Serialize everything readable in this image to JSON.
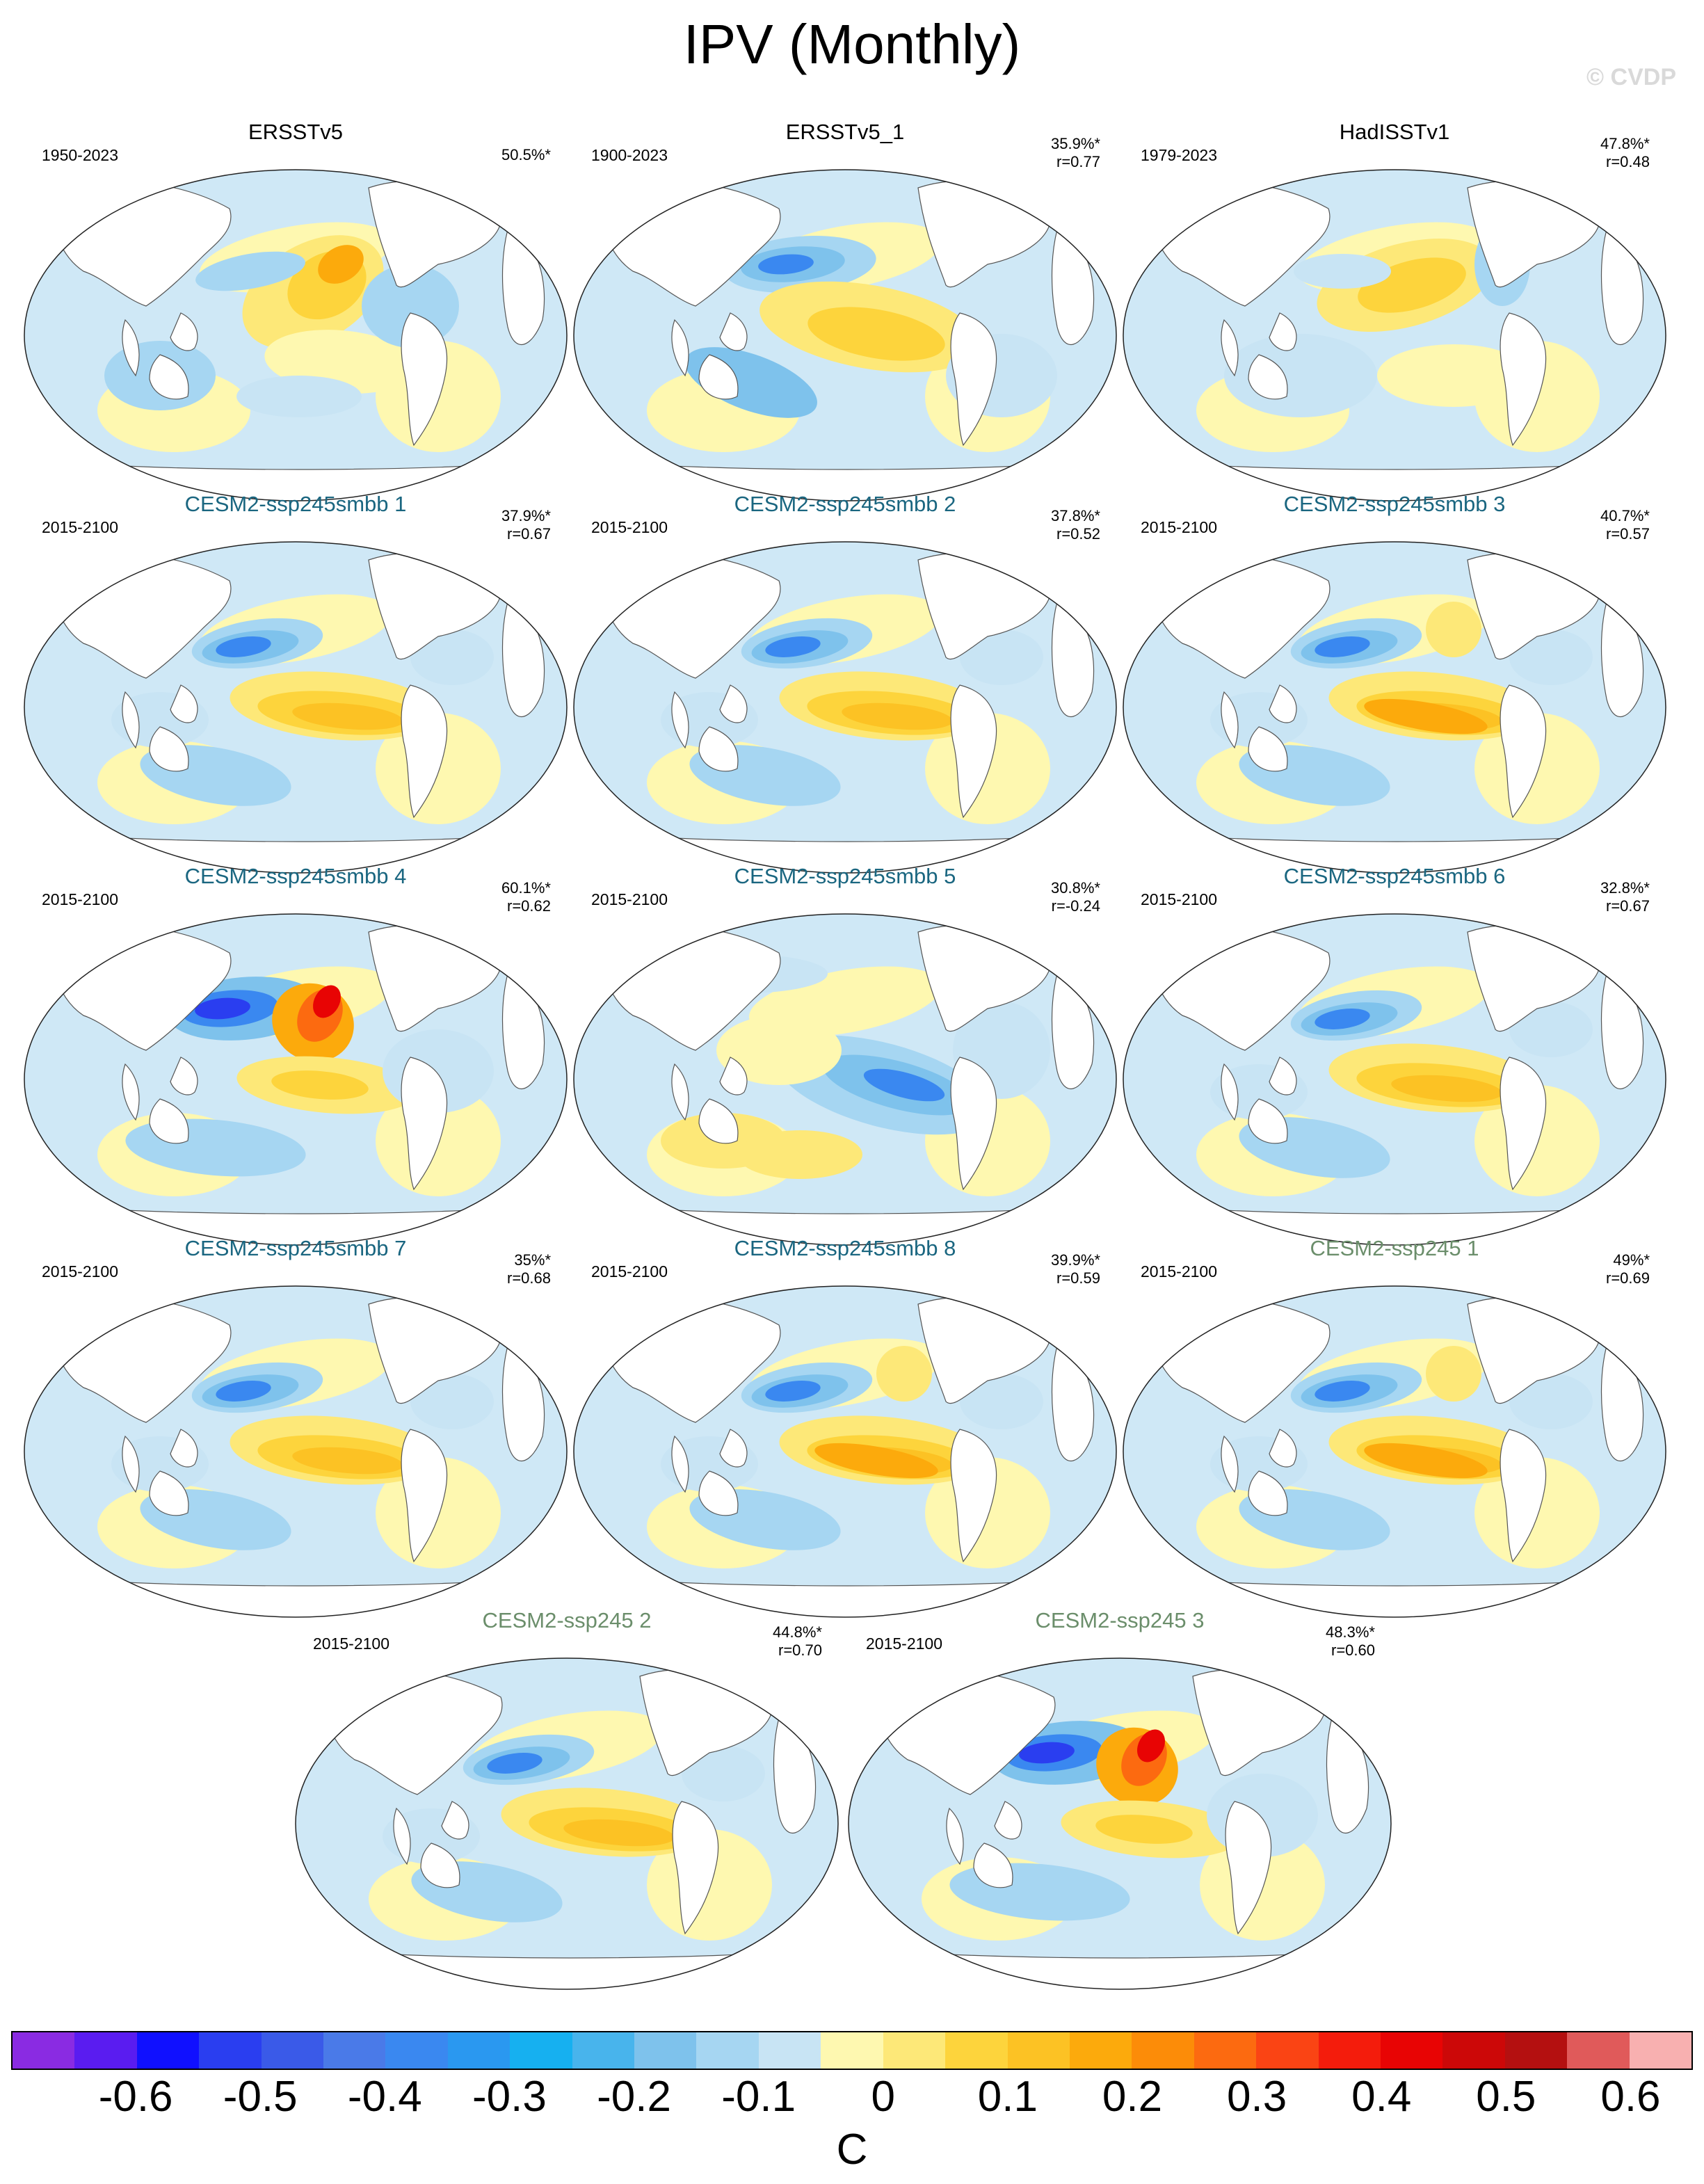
{
  "title": "IPV (Monthly)",
  "copyright": "© CVDP",
  "panels": [
    {
      "name": "ERSSTv5",
      "period": "1950-2023",
      "pct": "50.5%*",
      "r": "",
      "color": "#000000",
      "pattern": "obs1"
    },
    {
      "name": "ERSSTv5_1",
      "period": "1900-2023",
      "pct": "35.9%*",
      "r": "r=0.77",
      "color": "#000000",
      "pattern": "obs2"
    },
    {
      "name": "HadISSTv1",
      "period": "1979-2023",
      "pct": "47.8%*",
      "r": "r=0.48",
      "color": "#000000",
      "pattern": "obs3"
    },
    {
      "name": "CESM2-ssp245smbb 1",
      "period": "2015-2100",
      "pct": "37.9%*",
      "r": "r=0.67",
      "color": "#1a6680",
      "pattern": "std"
    },
    {
      "name": "CESM2-ssp245smbb 2",
      "period": "2015-2100",
      "pct": "37.8%*",
      "r": "r=0.52",
      "color": "#1a6680",
      "pattern": "std"
    },
    {
      "name": "CESM2-ssp245smbb 3",
      "period": "2015-2100",
      "pct": "40.7%*",
      "r": "r=0.57",
      "color": "#1a6680",
      "pattern": "strong"
    },
    {
      "name": "CESM2-ssp245smbb 4",
      "period": "2015-2100",
      "pct": "60.1%*",
      "r": "r=0.62",
      "color": "#1a6680",
      "pattern": "intense"
    },
    {
      "name": "CESM2-ssp245smbb 5",
      "period": "2015-2100",
      "pct": "30.8%*",
      "r": "r=-0.24",
      "color": "#1a6680",
      "pattern": "neg"
    },
    {
      "name": "CESM2-ssp245smbb 6",
      "period": "2015-2100",
      "pct": "32.8%*",
      "r": "r=0.67",
      "color": "#1a6680",
      "pattern": "std"
    },
    {
      "name": "CESM2-ssp245smbb 7",
      "period": "2015-2100",
      "pct": "35%*",
      "r": "r=0.68",
      "color": "#1a6680",
      "pattern": "std"
    },
    {
      "name": "CESM2-ssp245smbb 8",
      "period": "2015-2100",
      "pct": "39.9%*",
      "r": "r=0.59",
      "color": "#1a6680",
      "pattern": "strong"
    },
    {
      "name": "CESM2-ssp245 1",
      "period": "2015-2100",
      "pct": "49%*",
      "r": "r=0.69",
      "color": "#6b8e6b",
      "pattern": "strong"
    },
    {
      "name": "CESM2-ssp245 2",
      "period": "2015-2100",
      "pct": "44.8%*",
      "r": "r=0.70",
      "color": "#6b8e6b",
      "pattern": "std"
    },
    {
      "name": "CESM2-ssp245 3",
      "period": "2015-2100",
      "pct": "48.3%*",
      "r": "r=0.60",
      "color": "#6b8e6b",
      "pattern": "intense"
    }
  ],
  "colorbar": {
    "units": "C",
    "tick_labels": [
      "-0.6",
      "-0.5",
      "-0.4",
      "-0.3",
      "-0.2",
      "-0.1",
      "0",
      "0.1",
      "0.2",
      "0.3",
      "0.4",
      "0.5",
      "0.6"
    ],
    "colors": [
      "#8a2be2",
      "#5a1cf0",
      "#1010ff",
      "#2a3ef0",
      "#3a5ae8",
      "#4a7ae8",
      "#3a88f0",
      "#2a98f0",
      "#16b0f0",
      "#48b4ec",
      "#7ec2ec",
      "#a6d6f2",
      "#c8e4f4",
      "#fef8b0",
      "#fde878",
      "#fdd43c",
      "#fcc224",
      "#fcaa0c",
      "#fc8c08",
      "#fc6a10",
      "#fa4414",
      "#f41c0c",
      "#e80404",
      "#cc0808",
      "#b41010",
      "#e05a5a",
      "#f8b0b0"
    ]
  }
}
